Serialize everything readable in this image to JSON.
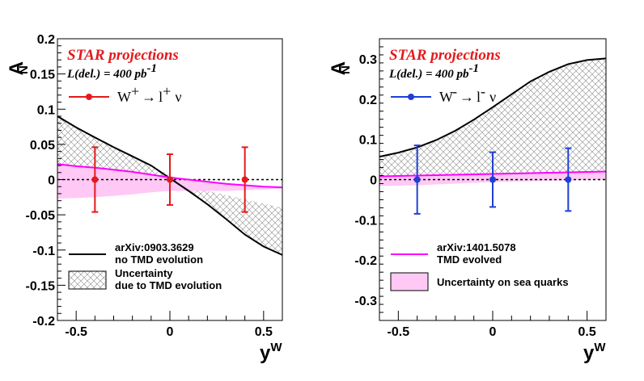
{
  "chart_data": [
    {
      "type": "line",
      "panel": "left",
      "ylabel_main": "A",
      "ylabel_sub": "N",
      "xlabel_main": "y",
      "xlabel_sup": "W",
      "xlim": [
        -0.6,
        0.6
      ],
      "ylim": [
        -0.2,
        0.2
      ],
      "xticks": [
        -0.5,
        0,
        0.5
      ],
      "xtick_labels": [
        "-0.5",
        "0",
        "0.5"
      ],
      "yticks": [
        -0.2,
        -0.15,
        -0.1,
        -0.05,
        0,
        0.05,
        0.1,
        0.15,
        0.2
      ],
      "ytick_labels": [
        "-0.2",
        "-0.15",
        "-0.1",
        "-0.05",
        "0",
        "0.05",
        "0.1",
        "0.15",
        "0.2"
      ],
      "title": "STAR projections",
      "luminosity_label": "L(del.) = 400 pb",
      "luminosity_sup": "-1",
      "process_legend": {
        "boson": "W",
        "boson_sign": "+",
        "arrow": "→",
        "lepton": "l",
        "lepton_sign": "+",
        "neutrino": "ν",
        "color": "#e31a1c"
      },
      "data_points": {
        "x": [
          -0.4,
          0.0,
          0.4
        ],
        "y": [
          0.0,
          0.0,
          0.0
        ],
        "err": [
          0.046,
          0.036,
          0.046
        ],
        "color": "#e31a1c"
      },
      "uncertainty_band": {
        "x": [
          -0.6,
          -0.5,
          -0.4,
          -0.3,
          -0.2,
          -0.1,
          0.0,
          0.1,
          0.2,
          0.3,
          0.4,
          0.5,
          0.6
        ],
        "upper": [
          0.09,
          0.074,
          0.06,
          0.046,
          0.033,
          0.02,
          0.006,
          -0.006,
          -0.016,
          -0.022,
          -0.028,
          -0.034,
          -0.04
        ],
        "lower": [
          0.018,
          0.017,
          0.015,
          0.013,
          0.01,
          0.006,
          0.0,
          -0.016,
          -0.035,
          -0.056,
          -0.078,
          -0.095,
          -0.107
        ]
      },
      "curve_no_tmd": {
        "x": [
          -0.6,
          -0.5,
          -0.4,
          -0.3,
          -0.2,
          -0.1,
          0.0,
          0.1,
          0.2,
          0.3,
          0.4,
          0.5,
          0.6
        ],
        "y": [
          0.09,
          0.074,
          0.06,
          0.046,
          0.033,
          0.02,
          0.002,
          -0.016,
          -0.035,
          -0.056,
          -0.078,
          -0.095,
          -0.107
        ],
        "color": "#000000"
      },
      "curve_tmd_evolved": {
        "x": [
          -0.6,
          -0.5,
          -0.4,
          -0.3,
          -0.2,
          -0.1,
          0.0,
          0.1,
          0.2,
          0.3,
          0.4,
          0.5,
          0.6
        ],
        "y": [
          0.022,
          0.019,
          0.017,
          0.014,
          0.011,
          0.007,
          0.003,
          0.0,
          -0.003,
          -0.006,
          -0.008,
          -0.01,
          -0.011
        ],
        "color": "#ff00ff"
      },
      "sea_band": {
        "x": [
          -0.6,
          -0.5,
          -0.4,
          -0.3,
          -0.2,
          -0.1,
          0.0,
          0.1,
          0.2,
          0.3,
          0.4,
          0.5,
          0.6
        ],
        "upper": [
          0.022,
          0.019,
          0.017,
          0.014,
          0.011,
          0.007,
          0.003,
          0.0,
          -0.003,
          -0.006,
          -0.008,
          -0.01,
          -0.011
        ],
        "lower": [
          -0.027,
          -0.026,
          -0.025,
          -0.023,
          -0.021,
          -0.018,
          -0.016,
          -0.016,
          -0.016,
          -0.016,
          -0.015,
          -0.014,
          -0.013
        ],
        "color": "#ffc8f5"
      },
      "legend": [
        {
          "style": "line",
          "line1": "arXiv:0903.3629",
          "line2": "no TMD evolution"
        },
        {
          "style": "hatch",
          "line1": "Uncertainty",
          "line2": "due to TMD evolution"
        }
      ]
    },
    {
      "type": "line",
      "panel": "right",
      "ylabel_main": "A",
      "ylabel_sub": "N",
      "xlabel_main": "y",
      "xlabel_sup": "W",
      "xlim": [
        -0.6,
        0.6
      ],
      "ylim": [
        -0.35,
        0.35
      ],
      "xticks": [
        -0.5,
        0,
        0.5
      ],
      "xtick_labels": [
        "-0.5",
        "0",
        "0.5"
      ],
      "yticks": [
        -0.3,
        -0.2,
        -0.1,
        0,
        0.1,
        0.2,
        0.3
      ],
      "ytick_labels": [
        "-0.3",
        "-0.2",
        "-0.1",
        "0",
        "0.1",
        "0.2",
        "0.3"
      ],
      "title": "STAR projections",
      "luminosity_label": "L(del.) = 400 pb",
      "luminosity_sup": "-1",
      "process_legend": {
        "boson": "W",
        "boson_sign": "-",
        "arrow": "→",
        "lepton": "l",
        "lepton_sign": "-",
        "neutrino": "ν",
        "color": "#1f3fd6"
      },
      "data_points": {
        "x": [
          -0.4,
          0.0,
          0.4
        ],
        "y": [
          0.0,
          0.0,
          0.0
        ],
        "err": [
          0.085,
          0.068,
          0.078
        ],
        "color": "#1f3fd6"
      },
      "uncertainty_band": {
        "x": [
          -0.6,
          -0.5,
          -0.4,
          -0.3,
          -0.2,
          -0.1,
          0.0,
          0.1,
          0.2,
          0.3,
          0.4,
          0.5,
          0.6
        ],
        "upper": [
          0.057,
          0.067,
          0.08,
          0.098,
          0.121,
          0.149,
          0.18,
          0.212,
          0.244,
          0.268,
          0.287,
          0.297,
          0.301
        ],
        "lower": [
          0.01,
          0.01,
          0.011,
          0.011,
          0.012,
          0.013,
          0.014,
          0.015,
          0.016,
          0.017,
          0.018,
          0.019,
          0.019
        ]
      },
      "curve_no_tmd": {
        "x": [
          -0.6,
          -0.5,
          -0.4,
          -0.3,
          -0.2,
          -0.1,
          0.0,
          0.1,
          0.2,
          0.3,
          0.4,
          0.5,
          0.6
        ],
        "y": [
          0.057,
          0.067,
          0.08,
          0.098,
          0.121,
          0.149,
          0.18,
          0.212,
          0.244,
          0.268,
          0.287,
          0.297,
          0.301
        ],
        "color": "#000000"
      },
      "curve_tmd_evolved": {
        "x": [
          -0.6,
          -0.5,
          -0.4,
          -0.3,
          -0.2,
          -0.1,
          0.0,
          0.1,
          0.2,
          0.3,
          0.4,
          0.5,
          0.6
        ],
        "y": [
          0.008,
          0.009,
          0.01,
          0.011,
          0.012,
          0.013,
          0.014,
          0.015,
          0.016,
          0.017,
          0.018,
          0.019,
          0.02
        ],
        "color": "#ff00ff"
      },
      "sea_band": {
        "x": [
          -0.6,
          -0.5,
          -0.4,
          -0.3,
          -0.2,
          -0.1,
          0.0,
          0.1,
          0.2,
          0.3,
          0.4,
          0.5,
          0.6
        ],
        "upper": [
          0.008,
          0.009,
          0.01,
          0.011,
          0.012,
          0.013,
          0.014,
          0.015,
          0.016,
          0.017,
          0.018,
          0.019,
          0.02
        ],
        "lower": [
          -0.016,
          -0.015,
          -0.014,
          -0.012,
          -0.01,
          -0.008,
          -0.006,
          -0.005,
          -0.004,
          -0.003,
          -0.002,
          -0.001,
          0.0
        ],
        "color": "#ffc8f5"
      },
      "legend": [
        {
          "style": "magenta-line",
          "line1": "arXiv:1401.5078",
          "line2": "TMD evolved"
        },
        {
          "style": "box",
          "line1": "Uncertainty on sea quarks",
          "line2": ""
        }
      ]
    }
  ]
}
